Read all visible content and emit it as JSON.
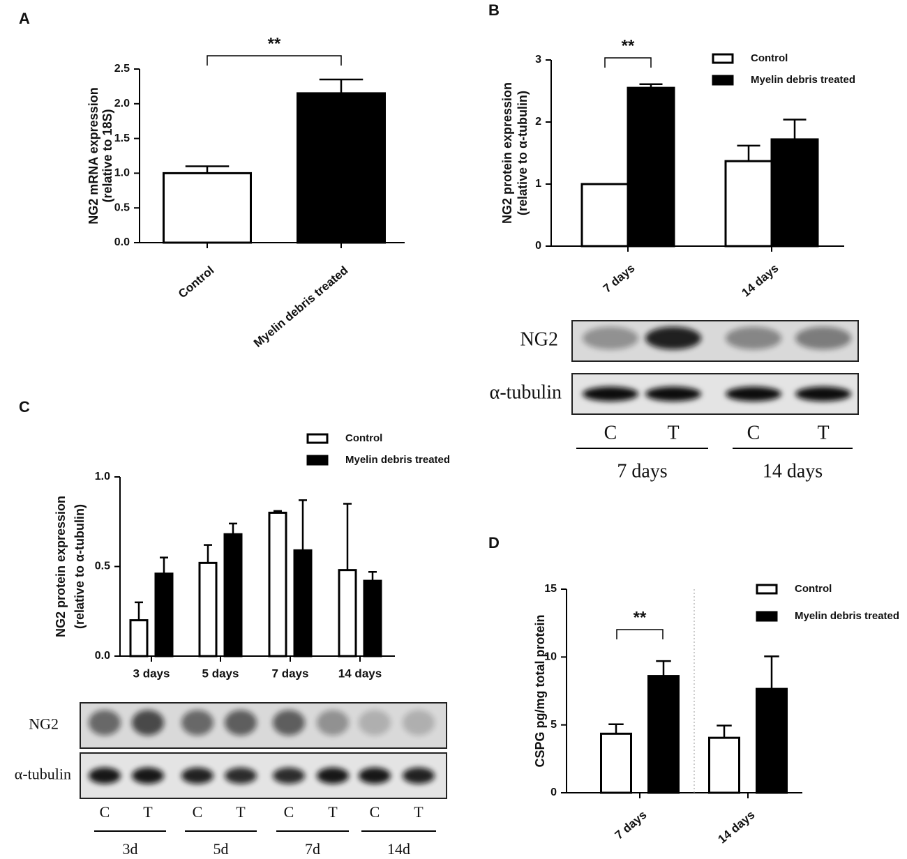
{
  "chart_data": [
    {
      "type": "bar",
      "panel": "A",
      "ylabel": [
        "NG2 mRNA expression",
        "(relative to 18S)"
      ],
      "categories": [
        "Control",
        "Myelin debris treated"
      ],
      "series": [
        {
          "color": "#ffffff",
          "values": [
            1.0,
            2.15
          ],
          "errors": [
            0.1,
            0.2
          ]
        }
      ],
      "fill_colors": [
        "#ffffff",
        "#000000"
      ],
      "ylim": [
        0,
        2.5
      ],
      "yticks": [
        {
          "value": 0,
          "label": "0.0"
        },
        {
          "value": 0.5,
          "label": "0.5"
        },
        {
          "value": 1,
          "label": "1.0"
        },
        {
          "value": 1.5,
          "label": "1.5"
        },
        {
          "value": 2,
          "label": "2.0"
        },
        {
          "value": 2.5,
          "label": "2.5"
        }
      ],
      "significance": "**"
    },
    {
      "type": "grouped_bar",
      "panel": "B",
      "ylabel": [
        "NG2 protein expression",
        "(relative to α-tubulin)"
      ],
      "categories": [
        "7 days",
        "14 days"
      ],
      "series": [
        {
          "name": "Control",
          "color": "#ffffff",
          "values": [
            1.0,
            1.37
          ],
          "errors": [
            0,
            0.25
          ]
        },
        {
          "name": "Myelin debris treated",
          "color": "#000000",
          "values": [
            2.55,
            1.72
          ],
          "errors": [
            0.06,
            0.32
          ]
        }
      ],
      "ylim": [
        0,
        3
      ],
      "yticks": [
        0,
        1,
        2,
        3
      ],
      "significance": "**",
      "blot": {
        "rows": [
          "NG2",
          "α-tubulin"
        ],
        "lanes": [
          "C",
          "T",
          "C",
          "T"
        ],
        "groups": [
          "7 days",
          "14 days"
        ]
      }
    },
    {
      "type": "grouped_bar",
      "panel": "C",
      "ylabel": [
        "NG2 protein expression",
        "(relative to α-tubulin)"
      ],
      "categories": [
        "3 days",
        "5 days",
        "7 days",
        "14 days"
      ],
      "series": [
        {
          "name": "Control",
          "color": "#ffffff",
          "values": [
            0.2,
            0.52,
            0.8,
            0.48
          ],
          "errors": [
            0.1,
            0.1,
            0.01,
            0.37
          ]
        },
        {
          "name": "Myelin debris treated",
          "color": "#000000",
          "values": [
            0.46,
            0.68,
            0.59,
            0.42
          ],
          "errors": [
            0.09,
            0.06,
            0.28,
            0.05
          ]
        }
      ],
      "ylim": [
        0,
        1
      ],
      "yticks": [
        {
          "value": 0,
          "label": "0.0"
        },
        {
          "value": 0.5,
          "label": "0.5"
        },
        {
          "value": 1,
          "label": "1.0"
        }
      ],
      "blot": {
        "rows": [
          "NG2",
          "α-tubulin"
        ],
        "lanes": [
          "C",
          "T",
          "C",
          "T",
          "C",
          "T",
          "C",
          "T"
        ],
        "groups": [
          "3d",
          "5d",
          "7d",
          "14d"
        ]
      }
    },
    {
      "type": "grouped_bar",
      "panel": "D",
      "ylabel": [
        "CSPG pg/mg total protein"
      ],
      "categories": [
        "7 days",
        "14 days"
      ],
      "series": [
        {
          "name": "Control",
          "color": "#ffffff",
          "values": [
            4.35,
            4.05
          ],
          "errors": [
            0.7,
            0.9
          ]
        },
        {
          "name": "Myelin debris treated",
          "color": "#000000",
          "values": [
            8.6,
            7.65
          ],
          "errors": [
            1.1,
            2.4
          ]
        }
      ],
      "ylim": [
        0,
        15
      ],
      "yticks": [
        0,
        5,
        10,
        15
      ],
      "significance": "**"
    }
  ]
}
